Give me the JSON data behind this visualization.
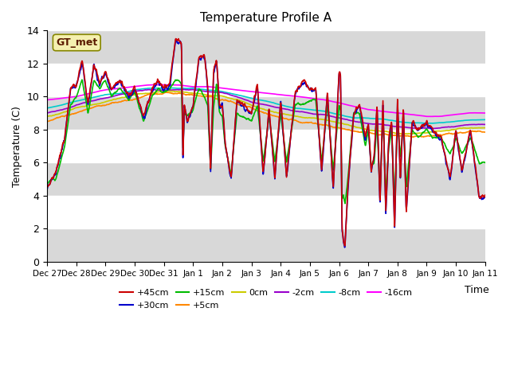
{
  "title": "Temperature Profile A",
  "xlabel": "Time",
  "ylabel": "Temperature (C)",
  "ylim": [
    0,
    14
  ],
  "yticks": [
    0,
    2,
    4,
    6,
    8,
    10,
    12,
    14
  ],
  "background_color": "#ffffff",
  "plot_bg_color": "#e0e0e0",
  "band_colors": [
    "#d8d8d8",
    "#ffffff"
  ],
  "annotation_text": "GT_met",
  "series": [
    {
      "label": "+45cm",
      "color": "#cc0000",
      "lw": 1.2
    },
    {
      "label": "+30cm",
      "color": "#0000cc",
      "lw": 1.2
    },
    {
      "label": "+15cm",
      "color": "#00bb00",
      "lw": 1.2
    },
    {
      "label": "+5cm",
      "color": "#ff8800",
      "lw": 1.2
    },
    {
      "label": "0cm",
      "color": "#cccc00",
      "lw": 1.2
    },
    {
      "label": "-2cm",
      "color": "#9900cc",
      "lw": 1.2
    },
    {
      "label": "-8cm",
      "color": "#00cccc",
      "lw": 1.2
    },
    {
      "label": "-16cm",
      "color": "#ff00ff",
      "lw": 1.2
    }
  ],
  "date_labels": [
    "Dec 27",
    "Dec 28",
    "Dec 29",
    "Dec 30",
    "Dec 31",
    "Jan 1",
    "Jan 2",
    "Jan 3",
    "Jan 4",
    "Jan 5",
    "Jan 6",
    "Jan 7",
    "Jan 8",
    "Jan 9",
    "Jan 10",
    "Jan 11"
  ]
}
